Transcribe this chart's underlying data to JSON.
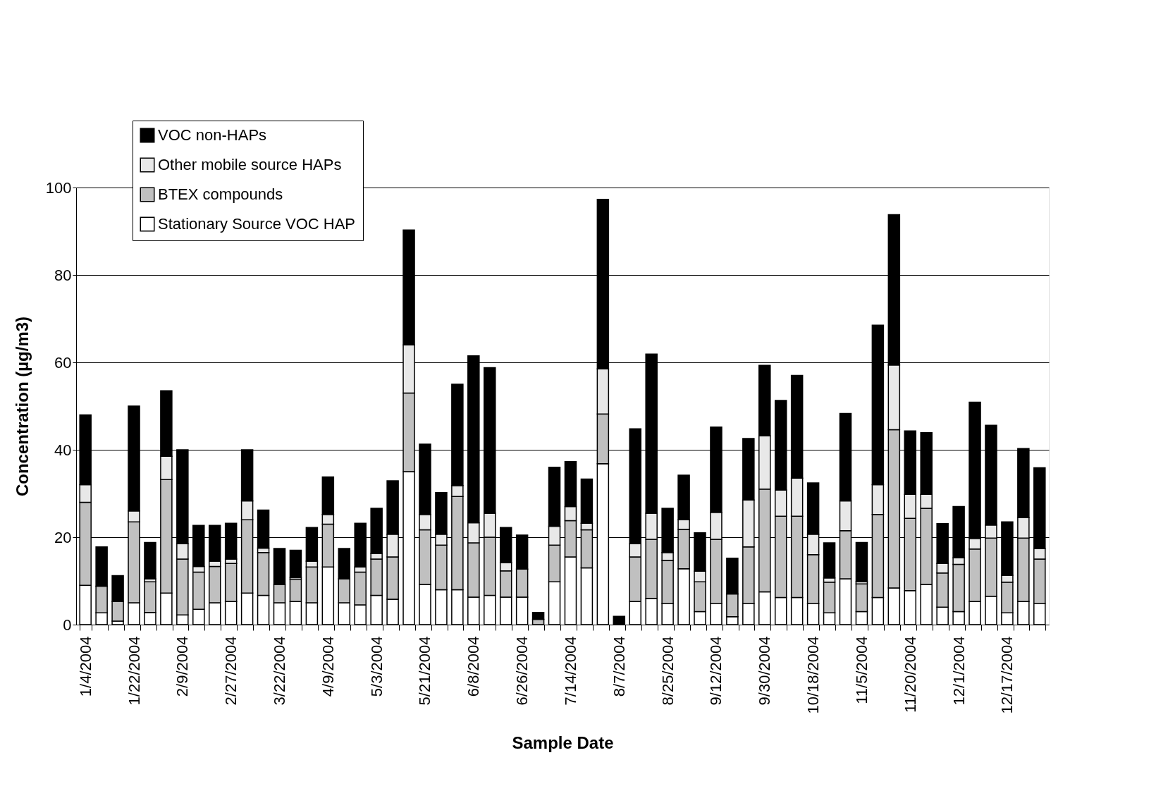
{
  "chart_data": {
    "type": "bar",
    "stacked": true,
    "xlabel": "Sample Date",
    "ylabel": "Concentration (µg/m3)",
    "categories": [
      "1/4/2004",
      null,
      null,
      "1/22/2004",
      null,
      null,
      "2/9/2004",
      null,
      null,
      "2/27/2004",
      null,
      null,
      "3/22/2004",
      null,
      null,
      "4/9/2004",
      null,
      null,
      "5/3/2004",
      null,
      null,
      "5/21/2004",
      null,
      null,
      "6/8/2004",
      null,
      null,
      "6/26/2004",
      null,
      null,
      "7/14/2004",
      null,
      null,
      "8/7/2004",
      null,
      null,
      "8/25/2004",
      null,
      null,
      "9/12/2004",
      null,
      null,
      "9/30/2004",
      null,
      null,
      "10/18/2004",
      null,
      null,
      "11/5/2004",
      null,
      null,
      "11/20/2004",
      null,
      null,
      "12/1/2004",
      null,
      null,
      "12/17/2004",
      null,
      null
    ],
    "series": [
      {
        "name": "Stationary Source VOC HAP",
        "color": "#ffffff",
        "values": [
          9,
          2.7,
          0.8,
          5,
          2.8,
          7.2,
          2.2,
          3.5,
          5,
          5.3,
          7.2,
          6.7,
          5,
          5.3,
          5,
          13.2,
          5,
          4.5,
          6.7,
          5.8,
          35,
          9.2,
          8,
          8,
          6.3,
          6.7,
          6.3,
          6.3,
          0,
          9.8,
          15.5,
          13,
          36.8,
          0,
          5.3,
          6,
          4.8,
          12.8,
          3,
          4.8,
          1.8,
          4.8,
          7.5,
          6.2,
          6.2,
          4.8,
          2.7,
          10.5,
          3,
          6.2,
          8.4,
          7.8,
          9.2,
          4,
          3,
          5.3,
          6.5,
          2.7,
          5.3,
          4.8
        ]
      },
      {
        "name": "BTEX compounds",
        "color": "#c0c0c0",
        "values": [
          19,
          6.1,
          4.5,
          18.5,
          7,
          26,
          12.8,
          8.5,
          8.3,
          8.7,
          16.8,
          9.8,
          4.2,
          5.1,
          8.2,
          9.8,
          5.5,
          7.5,
          8.3,
          9.7,
          18,
          12.5,
          10.2,
          21.3,
          12.4,
          13.3,
          6,
          6.4,
          1.2,
          8.4,
          8.3,
          8.7,
          11.4,
          0,
          10.2,
          13.5,
          9.9,
          9,
          6.8,
          14.7,
          5.2,
          13,
          23.5,
          18.6,
          18.6,
          11.2,
          7,
          11,
          6.3,
          19,
          36.2,
          16.5,
          17.4,
          7.8,
          10.8,
          12,
          13.3,
          7,
          14.5,
          10.2
        ]
      },
      {
        "name": "Other mobile source HAPs",
        "color": "#e8e8e8",
        "values": [
          4,
          0,
          0,
          2.5,
          0.7,
          5.3,
          3.5,
          1.3,
          1.2,
          1,
          4.3,
          1,
          0,
          0.4,
          1.3,
          2.2,
          0,
          1.2,
          1.3,
          5.2,
          11,
          3.5,
          2.5,
          2.5,
          4.6,
          5.5,
          1.9,
          0,
          0,
          4.3,
          3.2,
          1.5,
          10.3,
          0,
          3,
          6,
          1.8,
          2.2,
          2.4,
          6.2,
          0,
          10.7,
          12.2,
          6,
          8.7,
          4.7,
          1,
          6.8,
          0.5,
          6.8,
          14.8,
          5.5,
          3.2,
          2.2,
          1.5,
          2.4,
          3,
          1.6,
          4.7,
          2.4
        ]
      },
      {
        "name": "VOC non-HAPs",
        "color": "#000000",
        "values": [
          16,
          9,
          5.9,
          24,
          8.3,
          15,
          21.5,
          9.4,
          8.2,
          8.2,
          11.7,
          8.7,
          8.2,
          6.2,
          7.7,
          8.6,
          6.9,
          10,
          10.3,
          12.2,
          26.3,
          16.1,
          9.5,
          23.2,
          38.2,
          33.3,
          8,
          7.8,
          1.6,
          13.5,
          10.3,
          10.1,
          38.8,
          1.9,
          26.3,
          36.4,
          10.1,
          10.2,
          8.8,
          19.5,
          8.2,
          14.1,
          16.1,
          20.5,
          23.5,
          11.7,
          8,
          20,
          9,
          36.5,
          34.4,
          14.5,
          14.1,
          9.1,
          11.7,
          31.2,
          22.8,
          12.2,
          15.8,
          18.5
        ]
      }
    ],
    "ylim": [
      0,
      100
    ],
    "yticks": [
      0,
      20,
      40,
      60,
      80,
      100
    ],
    "grid": "y",
    "legend": "top left"
  }
}
